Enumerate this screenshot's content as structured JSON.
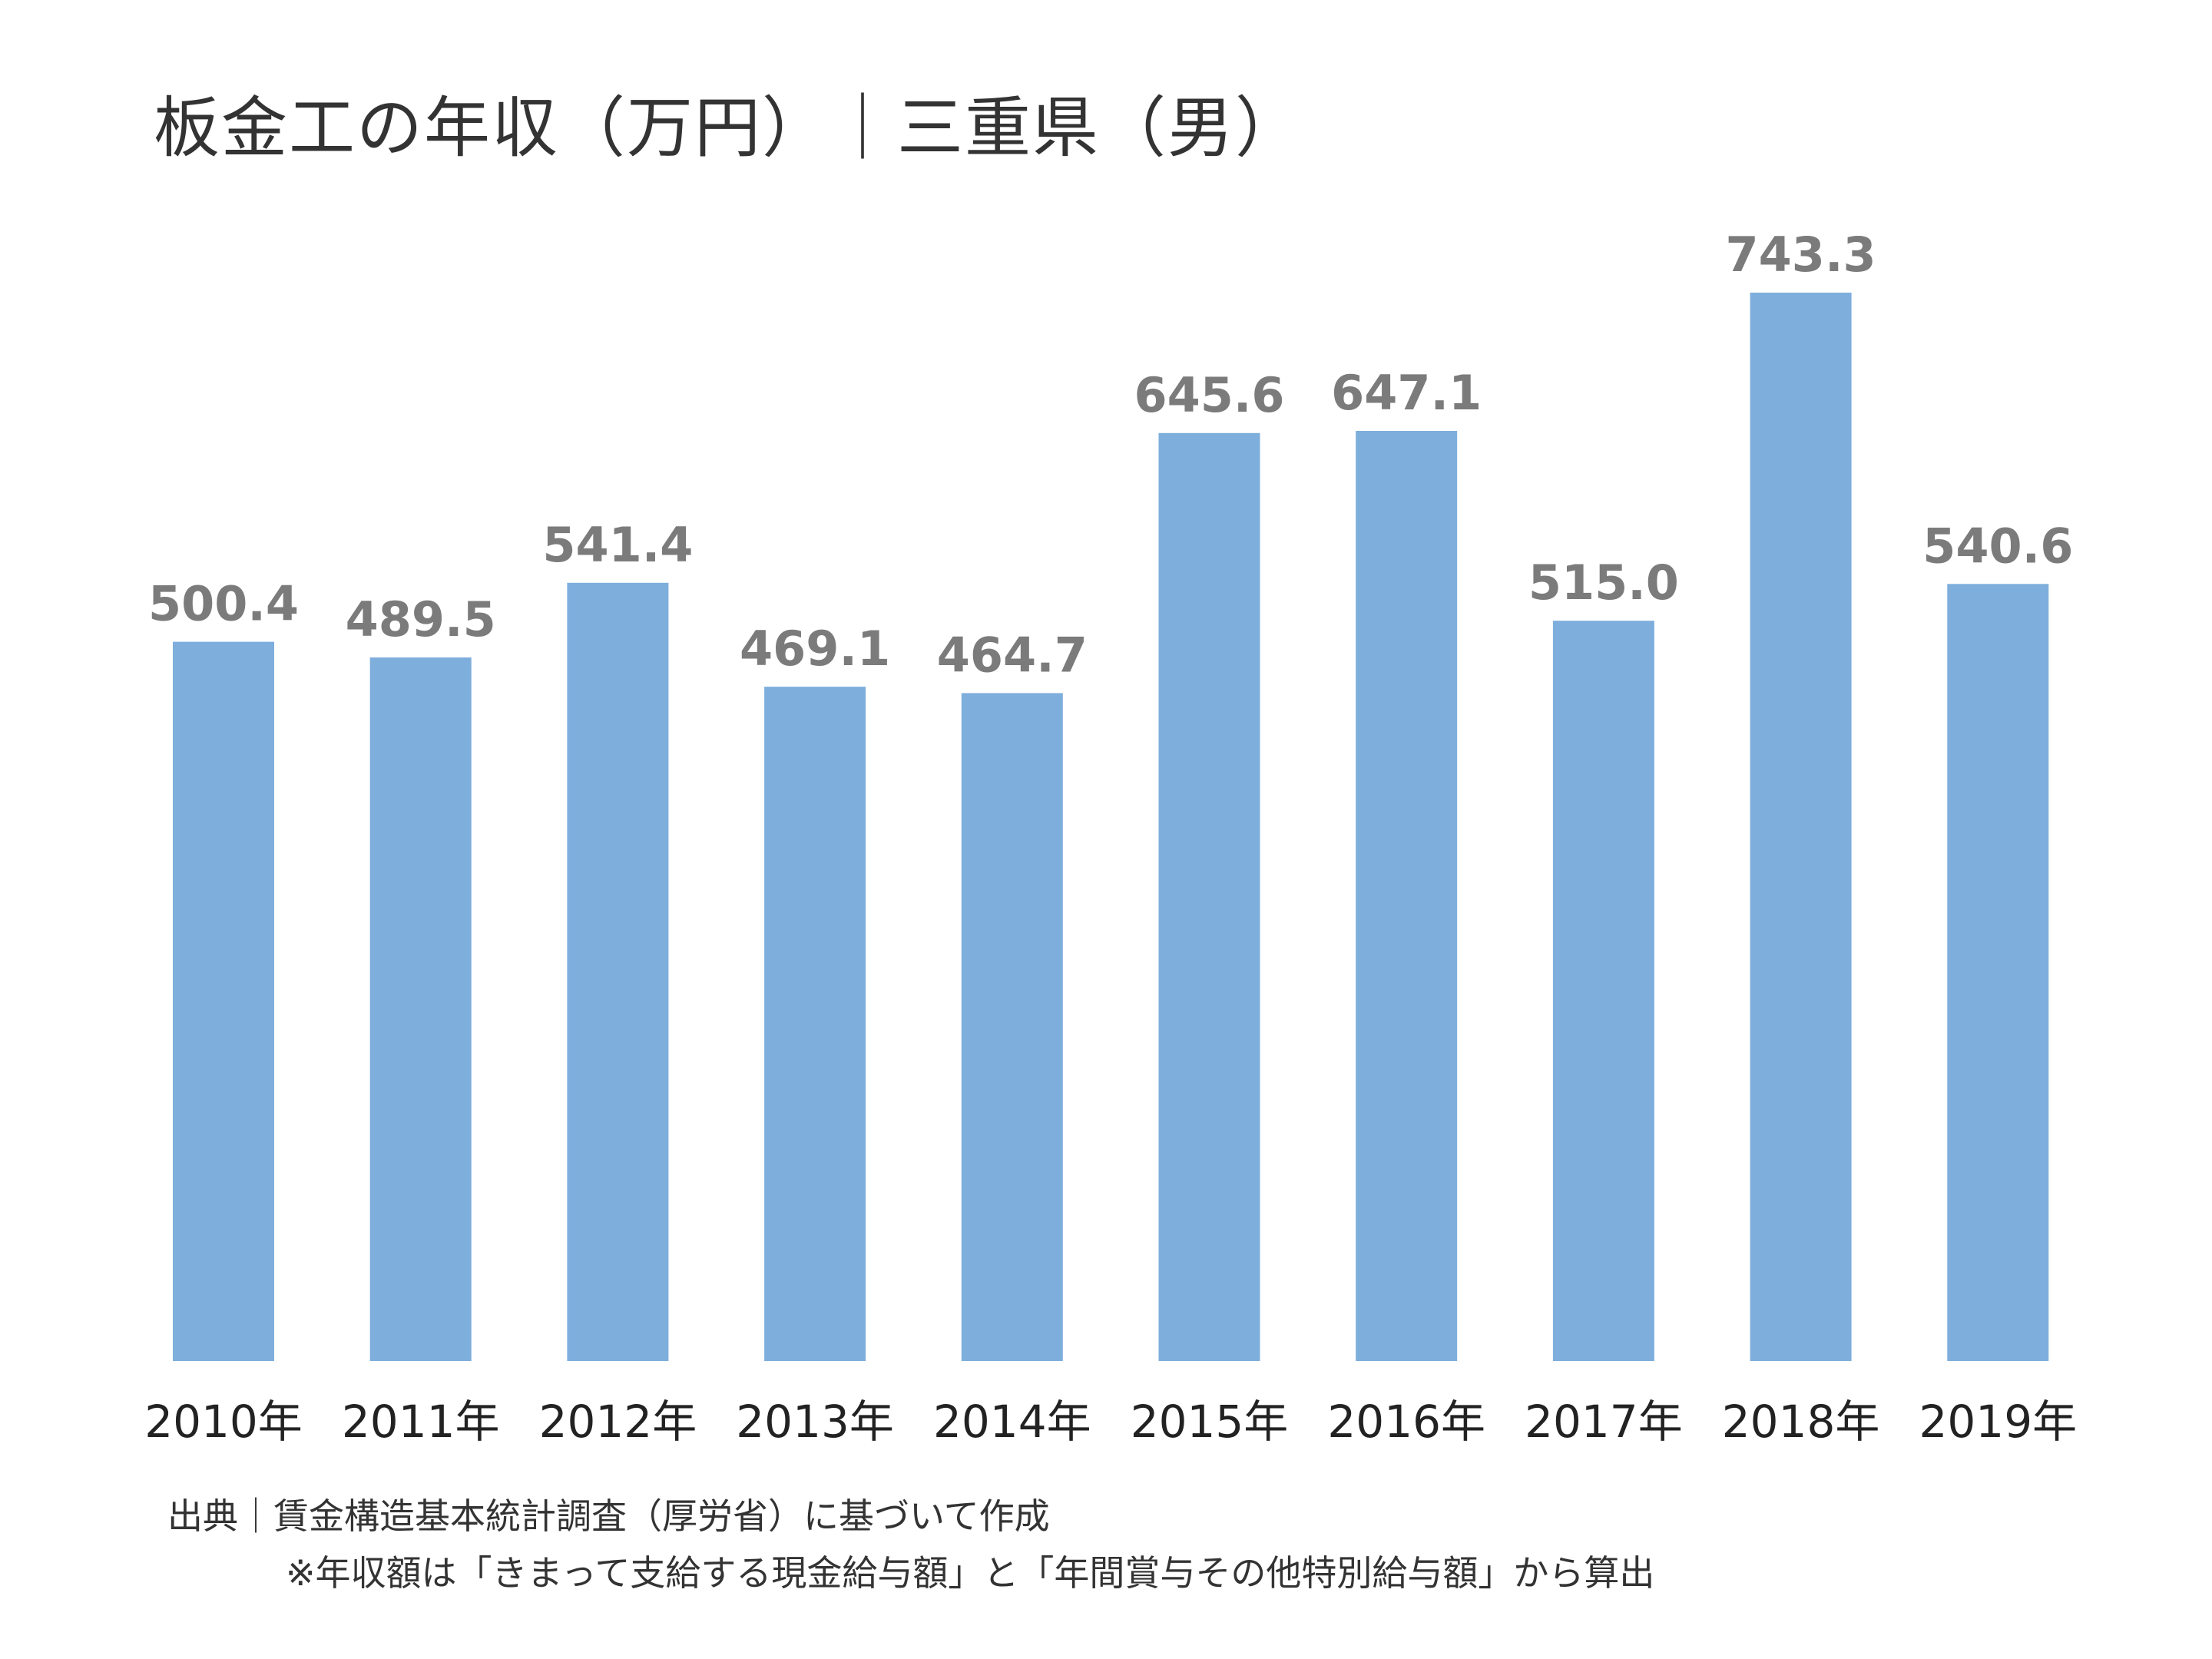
{
  "colors": {
    "bar": "#7eaedc",
    "value_label": "#7b7b7b",
    "tick_label": "#222222",
    "title": "#333333"
  },
  "chart_data": {
    "type": "bar",
    "title": "板金工の年収（万円）｜三重県（男）",
    "categories": [
      "2010年",
      "2011年",
      "2012年",
      "2013年",
      "2014年",
      "2015年",
      "2016年",
      "2017年",
      "2018年",
      "2019年"
    ],
    "values": [
      500.4,
      489.5,
      541.4,
      469.1,
      464.7,
      645.6,
      647.1,
      515.0,
      743.3,
      540.6
    ],
    "value_labels": [
      "500.4",
      "489.5",
      "541.4",
      "469.1",
      "464.7",
      "645.6",
      "647.1",
      "515.0",
      "743.3",
      "540.6"
    ],
    "ylim": [
      0,
      743.3
    ],
    "xlabel": "",
    "ylabel": "",
    "grid": false,
    "legend": "none"
  },
  "source": {
    "line1": "出典｜賃金構造基本統計調査（厚労省）に基づいて作成",
    "line2": "※年収額は「きまって支給する現金給与額」と「年間賞与その他特別給与額」から算出"
  }
}
